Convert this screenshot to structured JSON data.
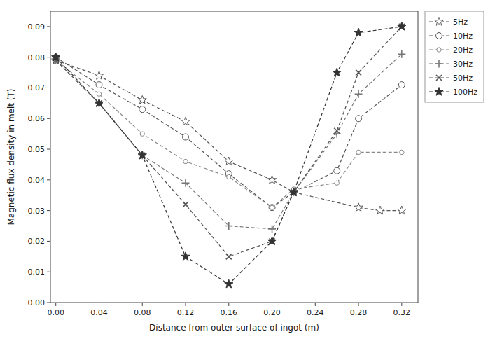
{
  "chart_data": {
    "type": "line",
    "xlabel": "Distance from outer surface of ingot (m)",
    "ylabel": "Magnetic flux density in melt (T)",
    "xlim": [
      -0.005,
      0.335
    ],
    "ylim": [
      0.0,
      0.095
    ],
    "xticks": [
      {
        "value": 0.0,
        "label": "0.00"
      },
      0.04,
      0.08,
      0.12,
      0.16,
      {
        "value": 0.2,
        "label": "0.20"
      },
      0.24,
      0.28,
      0.32
    ],
    "yticks": [
      {
        "value": 0.0,
        "label": "0.00"
      },
      0.01,
      0.02,
      0.03,
      0.04,
      0.05,
      0.06,
      0.07,
      0.08,
      0.09
    ],
    "grid": false,
    "legend": "upper right",
    "series": [
      {
        "name": "5Hz",
        "marker": "star-open",
        "line_style": "dashed",
        "color": "#555555",
        "x": [
          0.0,
          0.04,
          0.08,
          0.12,
          0.16,
          0.2,
          0.22,
          0.28,
          0.3,
          0.32
        ],
        "values": [
          0.079,
          0.074,
          0.066,
          0.059,
          0.046,
          0.04,
          0.036,
          0.031,
          0.03,
          0.03
        ]
      },
      {
        "name": "10Hz",
        "marker": "circle-open-large",
        "line_style": "dashed",
        "color": "#555555",
        "x": [
          0.0,
          0.04,
          0.08,
          0.12,
          0.16,
          0.2,
          0.22,
          0.26,
          0.28,
          0.32
        ],
        "values": [
          0.08,
          0.071,
          0.063,
          0.054,
          0.042,
          0.031,
          0.036,
          0.043,
          0.06,
          0.071
        ]
      },
      {
        "name": "20Hz",
        "marker": "circle-open-small",
        "line_style": "dashed",
        "color": "#888888",
        "x": [
          0.0,
          0.04,
          0.08,
          0.12,
          0.16,
          0.2,
          0.22,
          0.26,
          0.28,
          0.32
        ],
        "values": [
          0.079,
          0.068,
          0.055,
          0.046,
          0.041,
          0.031,
          0.037,
          0.039,
          0.049,
          0.049
        ]
      },
      {
        "name": "30Hz",
        "marker": "plus",
        "line_style": "dashed",
        "color": "#777777",
        "x": [
          0.0,
          0.04,
          0.08,
          0.12,
          0.16,
          0.2,
          0.22,
          0.26,
          0.28,
          0.32
        ],
        "values": [
          0.079,
          0.065,
          0.048,
          0.039,
          0.025,
          0.024,
          0.036,
          0.055,
          0.068,
          0.081
        ]
      },
      {
        "name": "50Hz",
        "marker": "x",
        "line_style": "dashed",
        "color": "#555555",
        "x": [
          0.0,
          0.04,
          0.08,
          0.12,
          0.16,
          0.2,
          0.22,
          0.26,
          0.28,
          0.32
        ],
        "values": [
          0.079,
          0.065,
          0.048,
          0.032,
          0.015,
          0.02,
          0.036,
          0.056,
          0.075,
          0.09
        ]
      },
      {
        "name": "100Hz",
        "marker": "star-filled",
        "line_style": "dashed",
        "color": "#333333",
        "x": [
          0.0,
          0.04,
          0.08,
          0.12,
          0.16,
          0.2,
          0.22,
          0.26,
          0.28,
          0.32
        ],
        "values": [
          0.08,
          0.065,
          0.048,
          0.015,
          0.006,
          0.02,
          0.036,
          0.075,
          0.088,
          0.09
        ]
      }
    ]
  }
}
